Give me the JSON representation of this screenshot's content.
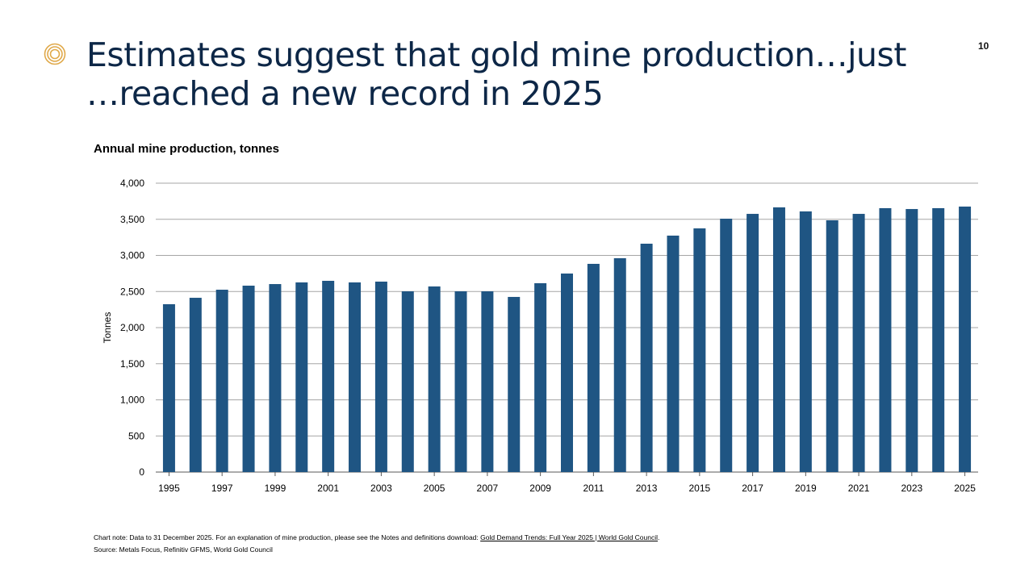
{
  "page_number": "10",
  "title_line1": "Estimates suggest that gold mine production…just",
  "title_line2": "…reached a new record in 2025",
  "colors": {
    "bar": "#1f5583",
    "title": "#0d2747",
    "logo": "#e0a94a",
    "grid": "#a6a6a6"
  },
  "chart_data": {
    "type": "bar",
    "title": "Annual mine production, tonnes",
    "xlabel": "",
    "ylabel": "Tonnes",
    "ylim": [
      0,
      4000
    ],
    "yticks": [
      0,
      500,
      1000,
      1500,
      2000,
      2500,
      3000,
      3500,
      4000
    ],
    "ytick_labels": [
      "0",
      "500",
      "1,000",
      "1,500",
      "2,000",
      "2,500",
      "3,000",
      "3,500",
      "4,000"
    ],
    "grid": true,
    "categories": [
      "1995",
      "1996",
      "1997",
      "1998",
      "1999",
      "2000",
      "2001",
      "2002",
      "2003",
      "2004",
      "2005",
      "2006",
      "2007",
      "2008",
      "2009",
      "2010",
      "2011",
      "2012",
      "2013",
      "2014",
      "2015",
      "2016",
      "2017",
      "2018",
      "2019",
      "2020",
      "2021",
      "2022",
      "2023",
      "2024",
      "2025"
    ],
    "xtick_labels": [
      "1995",
      "1997",
      "1999",
      "2001",
      "2003",
      "2005",
      "2007",
      "2009",
      "2011",
      "2013",
      "2015",
      "2017",
      "2019",
      "2021",
      "2023",
      "2025"
    ],
    "values": [
      2324,
      2413,
      2525,
      2581,
      2603,
      2626,
      2648,
      2626,
      2637,
      2503,
      2570,
      2503,
      2503,
      2425,
      2615,
      2749,
      2883,
      2961,
      3162,
      3274,
      3374,
      3508,
      3575,
      3665,
      3609,
      3486,
      3575,
      3654,
      3642,
      3654,
      3676
    ]
  },
  "footnote": {
    "note_prefix": "Chart note: Data to 31 December 2025. For an explanation of mine production, please see the Notes and definitions download: ",
    "link_text": "Gold Demand Trends: Full Year 2025 | World Gold Council",
    "note_suffix": ".",
    "source": "Source: Metals Focus, Refinitiv GFMS, World Gold Council"
  }
}
